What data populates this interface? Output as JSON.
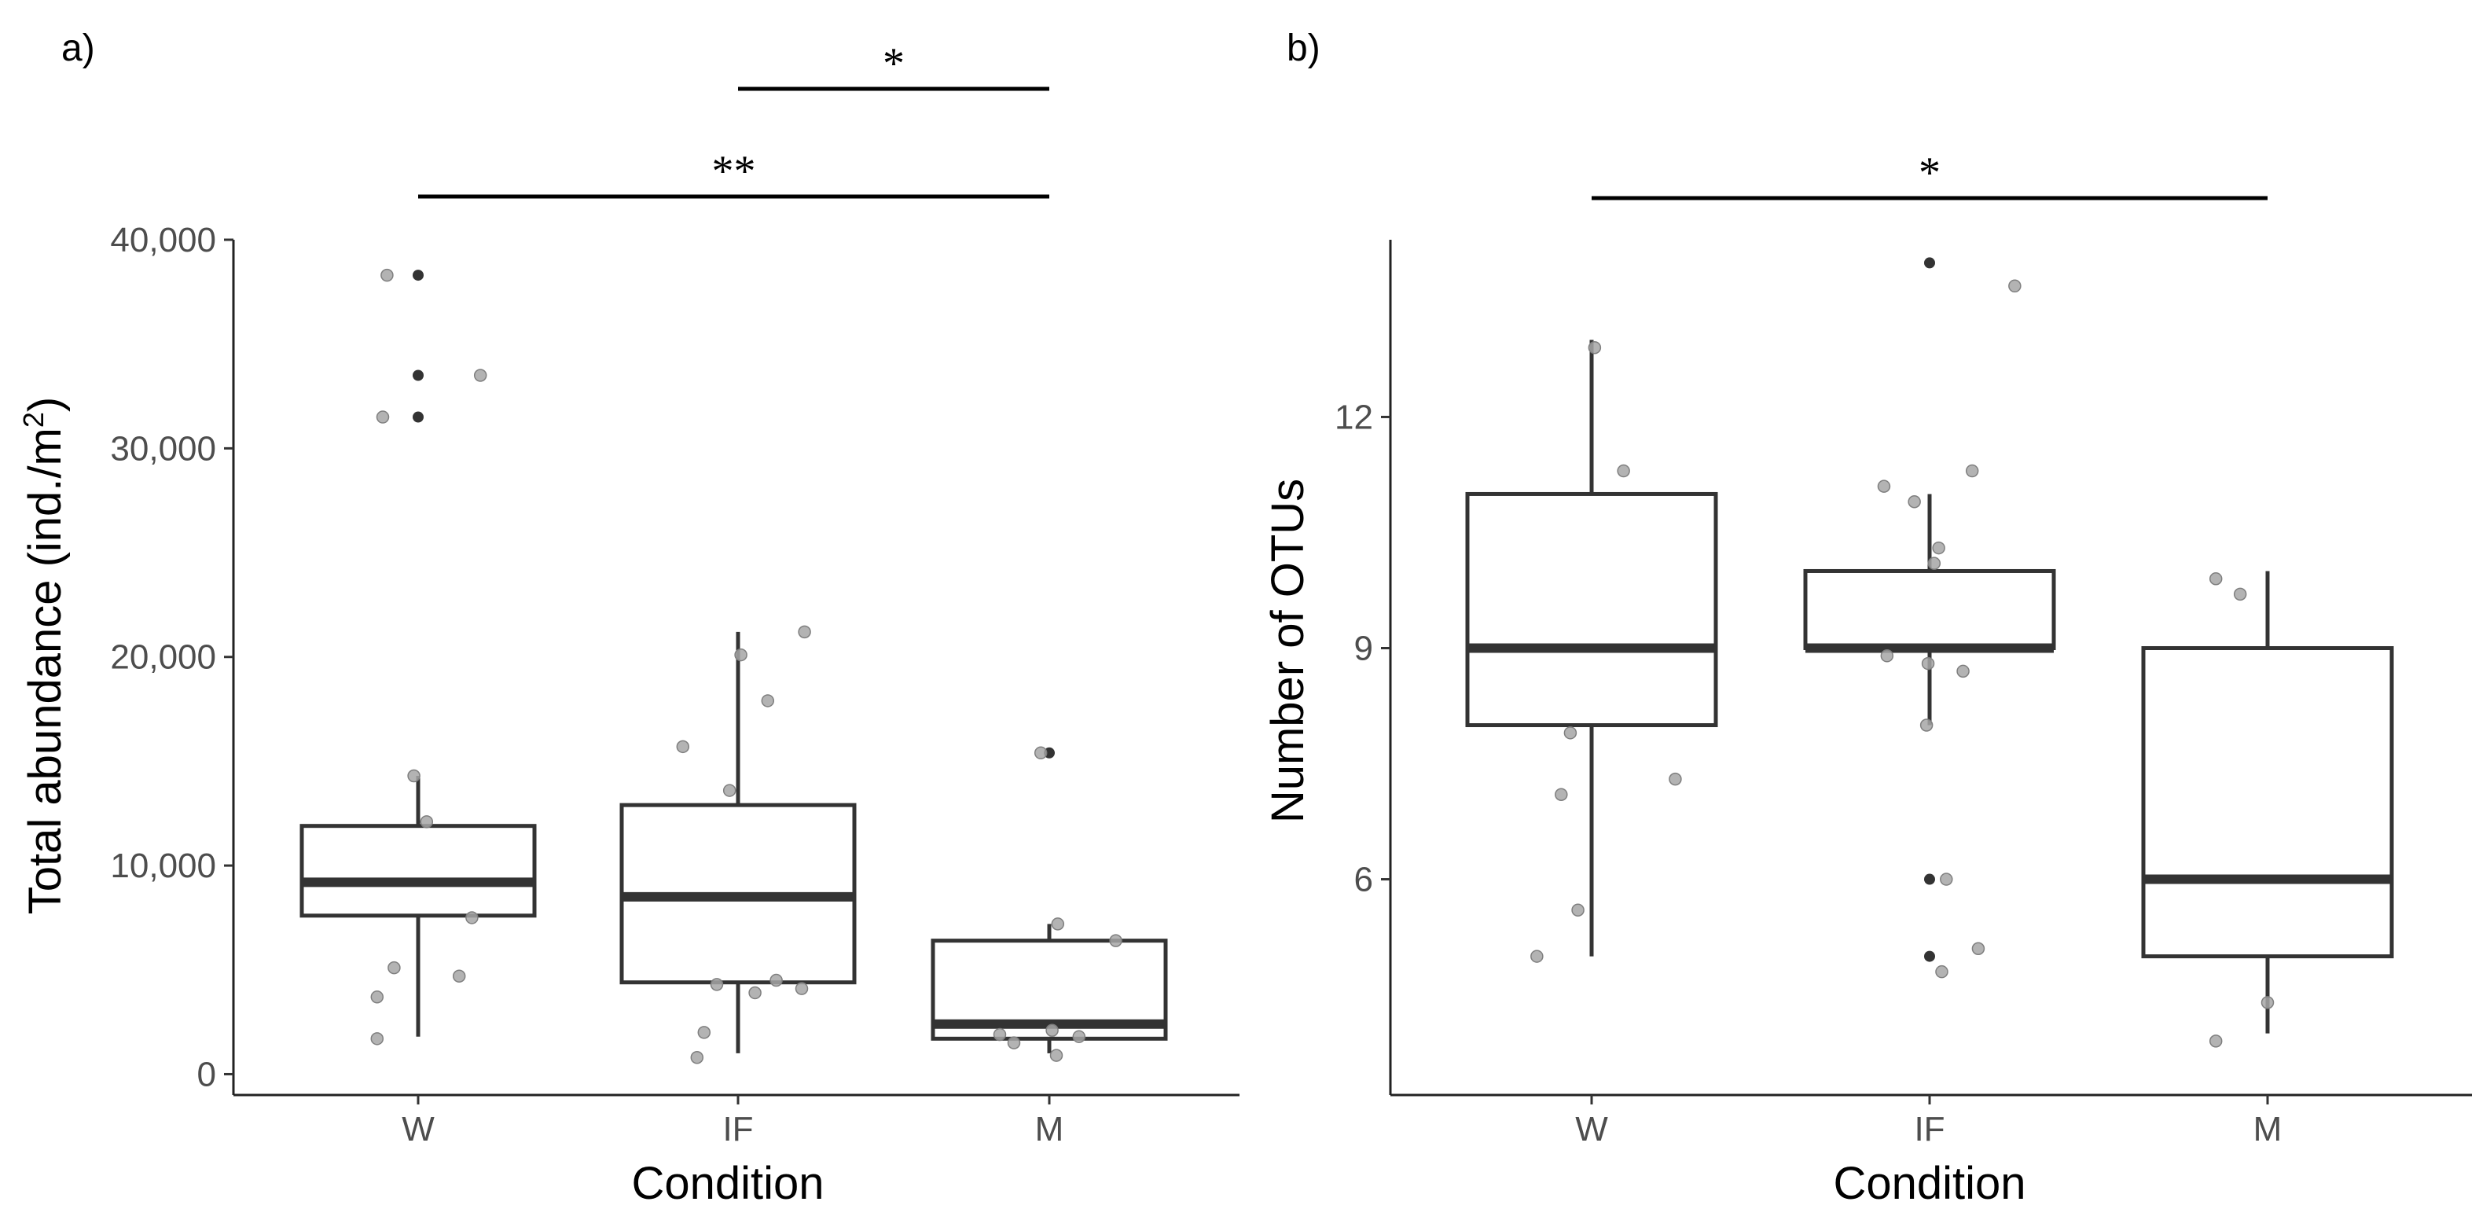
{
  "chart_data": [
    {
      "panel": "a)",
      "type": "boxplot",
      "xlabel": "Condition",
      "ylabel": "Total abundance (ind./m",
      "ylabel_superscript": "2",
      "ylabel_close": ")",
      "ylim": [
        -1000,
        40000
      ],
      "yticks": [
        0,
        10000,
        20000,
        30000,
        40000
      ],
      "ytick_labels": [
        "0",
        "10,000",
        "20,000",
        "30,000",
        "40,000"
      ],
      "categories": [
        "W",
        "IF",
        "M"
      ],
      "boxes": [
        {
          "category": "W",
          "whisker_low": 1800,
          "q1": 7600,
          "median": 9200,
          "q3": 11900,
          "whisker_high": 14300,
          "outliers": [
            31500,
            33500,
            38300
          ],
          "points": [
            [
              -0.29,
              1700
            ],
            [
              -0.29,
              3700
            ],
            [
              -0.17,
              5100
            ],
            [
              0.29,
              4700
            ],
            [
              0.38,
              7500
            ],
            [
              0.06,
              12100
            ],
            [
              -0.03,
              14300
            ],
            [
              -0.25,
              31500
            ],
            [
              -0.22,
              38300
            ],
            [
              0.44,
              33500
            ]
          ]
        },
        {
          "category": "IF",
          "whisker_low": 1000,
          "q1": 4400,
          "median": 8500,
          "q3": 12900,
          "whisker_high": 21200,
          "outliers": [],
          "points": [
            [
              -0.29,
              800
            ],
            [
              -0.24,
              2000
            ],
            [
              -0.15,
              4300
            ],
            [
              0.12,
              3900
            ],
            [
              0.27,
              4500
            ],
            [
              0.45,
              4100
            ],
            [
              -0.39,
              15700
            ],
            [
              -0.06,
              13600
            ],
            [
              0.02,
              20100
            ],
            [
              0.21,
              17900
            ],
            [
              0.47,
              21200
            ]
          ]
        },
        {
          "category": "M",
          "whisker_low": 1000,
          "q1": 1700,
          "median": 2400,
          "q3": 6400,
          "whisker_high": 7200,
          "outliers": [
            15400
          ],
          "points": [
            [
              -0.25,
              1500
            ],
            [
              -0.35,
              1900
            ],
            [
              0.02,
              2100
            ],
            [
              0.05,
              900
            ],
            [
              0.21,
              1800
            ],
            [
              0.06,
              7200
            ],
            [
              0.47,
              6400
            ],
            [
              -0.06,
              15400
            ]
          ]
        }
      ],
      "significance": [
        {
          "from": "IF",
          "to": "M",
          "label": "*",
          "level": 2
        },
        {
          "from": "W",
          "to": "M",
          "label": "**",
          "level": 1
        }
      ]
    },
    {
      "panel": "b)",
      "type": "boxplot",
      "xlabel": "Condition",
      "ylabel": "Number of OTUs",
      "ylim": [
        3.2,
        14.3
      ],
      "yticks": [
        6,
        9,
        12
      ],
      "ytick_labels": [
        "6",
        "9",
        "12"
      ],
      "categories": [
        "W",
        "IF",
        "M"
      ],
      "boxes": [
        {
          "category": "W",
          "whisker_low": 5,
          "q1": 8,
          "median": 9,
          "q3": 11,
          "whisker_high": 13,
          "outliers": [],
          "points": [
            [
              -0.36,
              5.0
            ],
            [
              -0.09,
              5.6
            ],
            [
              -0.2,
              7.1
            ],
            [
              -0.14,
              7.9
            ],
            [
              0.55,
              7.3
            ],
            [
              0.02,
              12.9
            ],
            [
              0.21,
              11.3
            ]
          ]
        },
        {
          "category": "IF",
          "whisker_low": 8,
          "q1": 9,
          "median": 9,
          "q3": 10,
          "whisker_high": 11,
          "outliers": [
            5,
            6,
            14
          ],
          "points": [
            [
              -0.3,
              11.1
            ],
            [
              -0.1,
              10.9
            ],
            [
              0.06,
              10.3
            ],
            [
              0.28,
              11.3
            ],
            [
              -0.28,
              8.9
            ],
            [
              -0.01,
              8.8
            ],
            [
              0.22,
              8.7
            ],
            [
              -0.02,
              8.0
            ],
            [
              0.08,
              4.8
            ],
            [
              0.11,
              6.0
            ],
            [
              0.32,
              5.1
            ],
            [
              0.03,
              10.1
            ],
            [
              0.56,
              13.7
            ]
          ]
        },
        {
          "category": "M",
          "whisker_low": 4,
          "q1": 5,
          "median": 6,
          "q3": 9,
          "whisker_high": 10,
          "outliers": [],
          "points": [
            [
              -0.34,
              3.9
            ],
            [
              0.0,
              4.4
            ],
            [
              -0.34,
              9.9
            ],
            [
              -0.18,
              9.7
            ]
          ]
        }
      ],
      "significance": [
        {
          "from": "W",
          "to": "M",
          "label": "*",
          "level": 1
        }
      ]
    }
  ]
}
